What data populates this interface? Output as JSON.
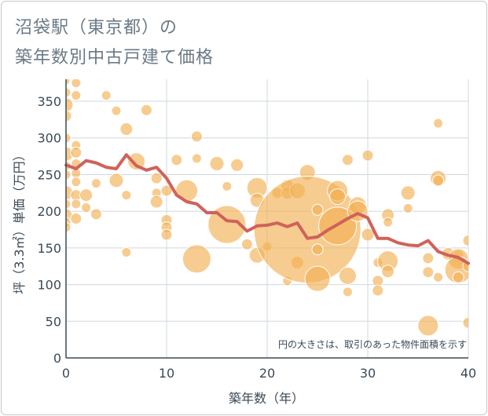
{
  "title_line1": "沼袋駅（東京都）の",
  "title_line2": "築年数別中古戸建て価格",
  "note": "円の大きさは、取引のあった物件面積を示す",
  "colors": {
    "bubble": "#f2b155",
    "line": "#d0625a",
    "grid": "#cfd8de",
    "axis": "#3b4a56",
    "title": "#6b7a86"
  },
  "chart_data": {
    "type": "scatter",
    "xlabel": "築年数（年）",
    "ylabel": "坪（3.3㎡）単価（万円）",
    "xlim": [
      0,
      40
    ],
    "ylim": [
      0,
      380
    ],
    "xticks": [
      0,
      10,
      20,
      30,
      40
    ],
    "yticks": [
      0,
      50,
      100,
      150,
      200,
      250,
      300,
      350
    ],
    "grid": true,
    "bubbles": [
      {
        "x": 0,
        "y": 378,
        "s": 5
      },
      {
        "x": 0,
        "y": 362,
        "s": 6
      },
      {
        "x": 0,
        "y": 345,
        "s": 9
      },
      {
        "x": 0,
        "y": 330,
        "s": 7
      },
      {
        "x": 0,
        "y": 300,
        "s": 6
      },
      {
        "x": 0,
        "y": 278,
        "s": 9
      },
      {
        "x": 0,
        "y": 262,
        "s": 6
      },
      {
        "x": 0,
        "y": 250,
        "s": 6
      },
      {
        "x": 0,
        "y": 225,
        "s": 9
      },
      {
        "x": 0,
        "y": 210,
        "s": 6
      },
      {
        "x": 0,
        "y": 195,
        "s": 8
      },
      {
        "x": 0,
        "y": 185,
        "s": 6
      },
      {
        "x": 0,
        "y": 178,
        "s": 6
      },
      {
        "x": 1,
        "y": 375,
        "s": 6
      },
      {
        "x": 1,
        "y": 358,
        "s": 6
      },
      {
        "x": 1,
        "y": 290,
        "s": 6
      },
      {
        "x": 1,
        "y": 280,
        "s": 7
      },
      {
        "x": 1,
        "y": 265,
        "s": 6
      },
      {
        "x": 1,
        "y": 252,
        "s": 6
      },
      {
        "x": 1,
        "y": 240,
        "s": 6
      },
      {
        "x": 1,
        "y": 222,
        "s": 7
      },
      {
        "x": 1,
        "y": 210,
        "s": 6
      },
      {
        "x": 1,
        "y": 190,
        "s": 7
      },
      {
        "x": 2,
        "y": 222,
        "s": 8
      },
      {
        "x": 2,
        "y": 205,
        "s": 6
      },
      {
        "x": 3,
        "y": 238,
        "s": 6
      },
      {
        "x": 3,
        "y": 196,
        "s": 7
      },
      {
        "x": 4,
        "y": 358,
        "s": 6
      },
      {
        "x": 5,
        "y": 337,
        "s": 6
      },
      {
        "x": 5,
        "y": 242,
        "s": 9
      },
      {
        "x": 6,
        "y": 312,
        "s": 8
      },
      {
        "x": 6,
        "y": 222,
        "s": 6
      },
      {
        "x": 6,
        "y": 144,
        "s": 6
      },
      {
        "x": 7,
        "y": 268,
        "s": 11
      },
      {
        "x": 8,
        "y": 338,
        "s": 7
      },
      {
        "x": 9,
        "y": 245,
        "s": 7
      },
      {
        "x": 9,
        "y": 225,
        "s": 6
      },
      {
        "x": 9,
        "y": 213,
        "s": 8
      },
      {
        "x": 10,
        "y": 188,
        "s": 7
      },
      {
        "x": 10,
        "y": 178,
        "s": 7
      },
      {
        "x": 10,
        "y": 168,
        "s": 7
      },
      {
        "x": 10,
        "y": 228,
        "s": 7
      },
      {
        "x": 11,
        "y": 270,
        "s": 7
      },
      {
        "x": 12,
        "y": 228,
        "s": 14
      },
      {
        "x": 13,
        "y": 302,
        "s": 7
      },
      {
        "x": 13,
        "y": 272,
        "s": 6
      },
      {
        "x": 13,
        "y": 135,
        "s": 18
      },
      {
        "x": 15,
        "y": 265,
        "s": 9
      },
      {
        "x": 16,
        "y": 234,
        "s": 6
      },
      {
        "x": 16,
        "y": 182,
        "s": 24
      },
      {
        "x": 17,
        "y": 263,
        "s": 8
      },
      {
        "x": 18,
        "y": 155,
        "s": 7
      },
      {
        "x": 19,
        "y": 232,
        "s": 13
      },
      {
        "x": 19,
        "y": 215,
        "s": 9
      },
      {
        "x": 19,
        "y": 140,
        "s": 10
      },
      {
        "x": 20,
        "y": 152,
        "s": 6
      },
      {
        "x": 21,
        "y": 225,
        "s": 7
      },
      {
        "x": 22,
        "y": 235,
        "s": 8
      },
      {
        "x": 22,
        "y": 225,
        "s": 8
      },
      {
        "x": 22,
        "y": 105,
        "s": 6
      },
      {
        "x": 23,
        "y": 228,
        "s": 10
      },
      {
        "x": 23,
        "y": 130,
        "s": 8
      },
      {
        "x": 24,
        "y": 253,
        "s": 10
      },
      {
        "x": 24,
        "y": 175,
        "s": 68
      },
      {
        "x": 25,
        "y": 202,
        "s": 7
      },
      {
        "x": 25,
        "y": 148,
        "s": 7
      },
      {
        "x": 25,
        "y": 108,
        "s": 16
      },
      {
        "x": 27,
        "y": 228,
        "s": 13
      },
      {
        "x": 27,
        "y": 220,
        "s": 10
      },
      {
        "x": 27,
        "y": 180,
        "s": 24
      },
      {
        "x": 28,
        "y": 270,
        "s": 7
      },
      {
        "x": 28,
        "y": 112,
        "s": 11
      },
      {
        "x": 28,
        "y": 90,
        "s": 6
      },
      {
        "x": 29,
        "y": 208,
        "s": 11
      },
      {
        "x": 29,
        "y": 200,
        "s": 13
      },
      {
        "x": 30,
        "y": 276,
        "s": 7
      },
      {
        "x": 30,
        "y": 168,
        "s": 8
      },
      {
        "x": 31,
        "y": 130,
        "s": 6
      },
      {
        "x": 31,
        "y": 105,
        "s": 7
      },
      {
        "x": 31,
        "y": 92,
        "s": 7
      },
      {
        "x": 32,
        "y": 195,
        "s": 8
      },
      {
        "x": 32,
        "y": 185,
        "s": 6
      },
      {
        "x": 32,
        "y": 132,
        "s": 13
      },
      {
        "x": 32,
        "y": 118,
        "s": 8
      },
      {
        "x": 34,
        "y": 225,
        "s": 9
      },
      {
        "x": 34,
        "y": 204,
        "s": 6
      },
      {
        "x": 36,
        "y": 136,
        "s": 7
      },
      {
        "x": 36,
        "y": 117,
        "s": 7
      },
      {
        "x": 36,
        "y": 44,
        "s": 13
      },
      {
        "x": 37,
        "y": 320,
        "s": 6
      },
      {
        "x": 37,
        "y": 245,
        "s": 10
      },
      {
        "x": 37,
        "y": 242,
        "s": 7
      },
      {
        "x": 37,
        "y": 110,
        "s": 6
      },
      {
        "x": 38,
        "y": 142,
        "s": 8
      },
      {
        "x": 39,
        "y": 140,
        "s": 7
      },
      {
        "x": 39,
        "y": 135,
        "s": 13
      },
      {
        "x": 39,
        "y": 120,
        "s": 17
      },
      {
        "x": 39,
        "y": 110,
        "s": 7
      },
      {
        "x": 40,
        "y": 160,
        "s": 7
      },
      {
        "x": 40,
        "y": 125,
        "s": 7
      },
      {
        "x": 40,
        "y": 48,
        "s": 7
      }
    ],
    "trend": {
      "x": [
        0,
        1,
        2,
        3,
        4,
        5,
        6,
        7,
        8,
        9,
        10,
        11,
        12,
        13,
        14,
        15,
        16,
        17,
        18,
        19,
        20,
        21,
        22,
        23,
        24,
        25,
        26,
        27,
        28,
        29,
        30,
        31,
        32,
        33,
        34,
        35,
        36,
        37,
        38,
        39,
        40
      ],
      "y": [
        263,
        258,
        269,
        266,
        260,
        258,
        277,
        262,
        256,
        260,
        245,
        222,
        213,
        210,
        198,
        198,
        187,
        186,
        173,
        180,
        181,
        184,
        179,
        184,
        163,
        165,
        174,
        182,
        190,
        197,
        191,
        163,
        163,
        157,
        154,
        153,
        160,
        145,
        140,
        137,
        129
      ]
    }
  }
}
